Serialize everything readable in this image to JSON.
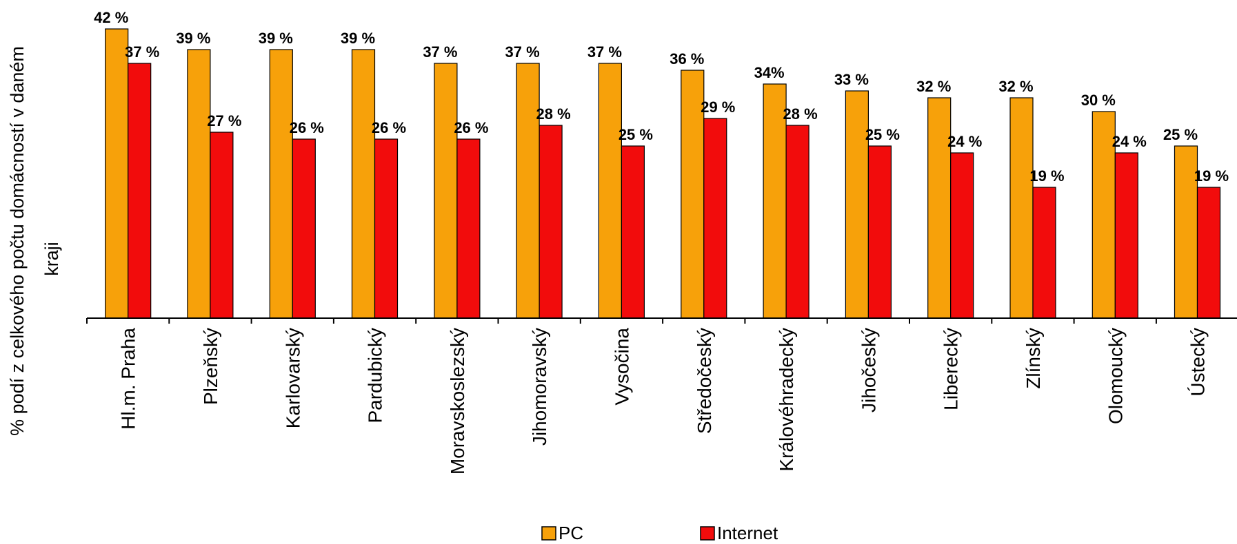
{
  "chart_data": {
    "type": "bar",
    "ylabel_lines": [
      "% podí  z celkového počtu domácností  v daném",
      "kraji"
    ],
    "categories": [
      "Hl.m. Praha",
      "Plzeňský",
      "Karlovarský",
      "Pardubický",
      "Moravskoslezský",
      "Jihomoravský",
      "Vysočina",
      "Středočeský",
      "Královéhradecký",
      "Jihočeský",
      "Liberecký",
      "Zlínský",
      "Olomoucký",
      "Ústecký"
    ],
    "series": [
      {
        "name": "PC",
        "color": "#f7a10a",
        "values": [
          42,
          39,
          39,
          39,
          37,
          37,
          37,
          36,
          34,
          33,
          32,
          32,
          30,
          25
        ],
        "labels": [
          "42 %",
          "39 %",
          "39 %",
          "39 %",
          "37 %",
          "37 %",
          "37 %",
          "36 %",
          "34%",
          "33 %",
          "32 %",
          "32 %",
          "30 %",
          "25 %"
        ]
      },
      {
        "name": "Internet",
        "color": "#f20c0c",
        "values": [
          37,
          27,
          26,
          26,
          26,
          28,
          25,
          29,
          28,
          25,
          24,
          19,
          24,
          19
        ],
        "labels": [
          "37 %",
          "27 %",
          "26 %",
          "26 %",
          "26 %",
          "28 %",
          "25 %",
          "29 %",
          "28 %",
          "25 %",
          "24 %",
          "19 %",
          "24 %",
          "19 %"
        ]
      }
    ],
    "ylim": [
      0,
      45
    ],
    "grid": false,
    "legend_position": "bottom"
  }
}
